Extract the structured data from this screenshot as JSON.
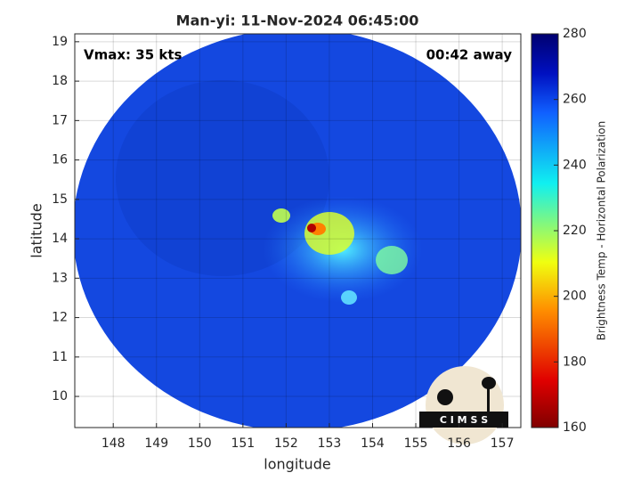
{
  "chart_data": {
    "type": "heatmap",
    "title": "Man-yi: 11-Nov-2024 06:45:00",
    "annotations": [
      "Vmax: 35 kts",
      "00:42 away"
    ],
    "xlabel": "longitude",
    "ylabel": "latitude",
    "xlim": [
      147.11,
      157.43
    ],
    "ylim": [
      9.21,
      19.2
    ],
    "xticks": [
      148,
      149,
      150,
      151,
      152,
      153,
      154,
      155,
      156,
      157
    ],
    "yticks": [
      10,
      11,
      12,
      13,
      14,
      15,
      16,
      17,
      18,
      19
    ],
    "grid": true,
    "colorbar": {
      "label": "Brightness Temp - Horizontal Polarization",
      "lim": [
        160,
        280
      ],
      "ticks": [
        160,
        180,
        200,
        220,
        240,
        260,
        280
      ]
    }
  },
  "logo": "C I M S S"
}
